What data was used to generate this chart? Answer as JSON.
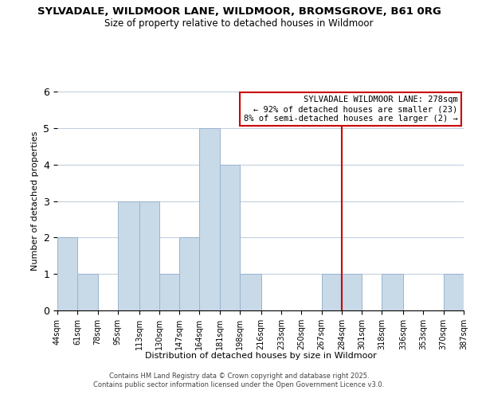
{
  "title": "SYLVADALE, WILDMOOR LANE, WILDMOOR, BROMSGROVE, B61 0RG",
  "subtitle": "Size of property relative to detached houses in Wildmoor",
  "xlabel": "Distribution of detached houses by size in Wildmoor",
  "ylabel": "Number of detached properties",
  "bar_edges": [
    44,
    61,
    78,
    95,
    113,
    130,
    147,
    164,
    181,
    198,
    216,
    233,
    250,
    267,
    284,
    301,
    318,
    336,
    353,
    370,
    387
  ],
  "bar_heights": [
    2,
    1,
    0,
    3,
    3,
    1,
    2,
    5,
    4,
    1,
    0,
    0,
    0,
    1,
    1,
    0,
    1,
    0,
    0,
    1
  ],
  "bar_color": "#c8d9e8",
  "bar_edge_color": "#9ab4cc",
  "grid_color": "#c0d0de",
  "bg_color": "#ffffff",
  "ref_line_x": 284,
  "ref_line_color": "#cc0000",
  "annotation_line1": "SYLVADALE WILDMOOR LANE: 278sqm",
  "annotation_line2": "← 92% of detached houses are smaller (23)",
  "annotation_line3": "8% of semi-detached houses are larger (2) →",
  "annotation_box_color": "#ffffff",
  "annotation_box_edge": "#cc0000",
  "ylim": [
    0,
    6
  ],
  "yticks": [
    0,
    1,
    2,
    3,
    4,
    5,
    6
  ],
  "tick_labels": [
    "44sqm",
    "61sqm",
    "78sqm",
    "95sqm",
    "113sqm",
    "130sqm",
    "147sqm",
    "164sqm",
    "181sqm",
    "198sqm",
    "216sqm",
    "233sqm",
    "250sqm",
    "267sqm",
    "284sqm",
    "301sqm",
    "318sqm",
    "336sqm",
    "353sqm",
    "370sqm",
    "387sqm"
  ],
  "footer1": "Contains HM Land Registry data © Crown copyright and database right 2025.",
  "footer2": "Contains public sector information licensed under the Open Government Licence v3.0."
}
